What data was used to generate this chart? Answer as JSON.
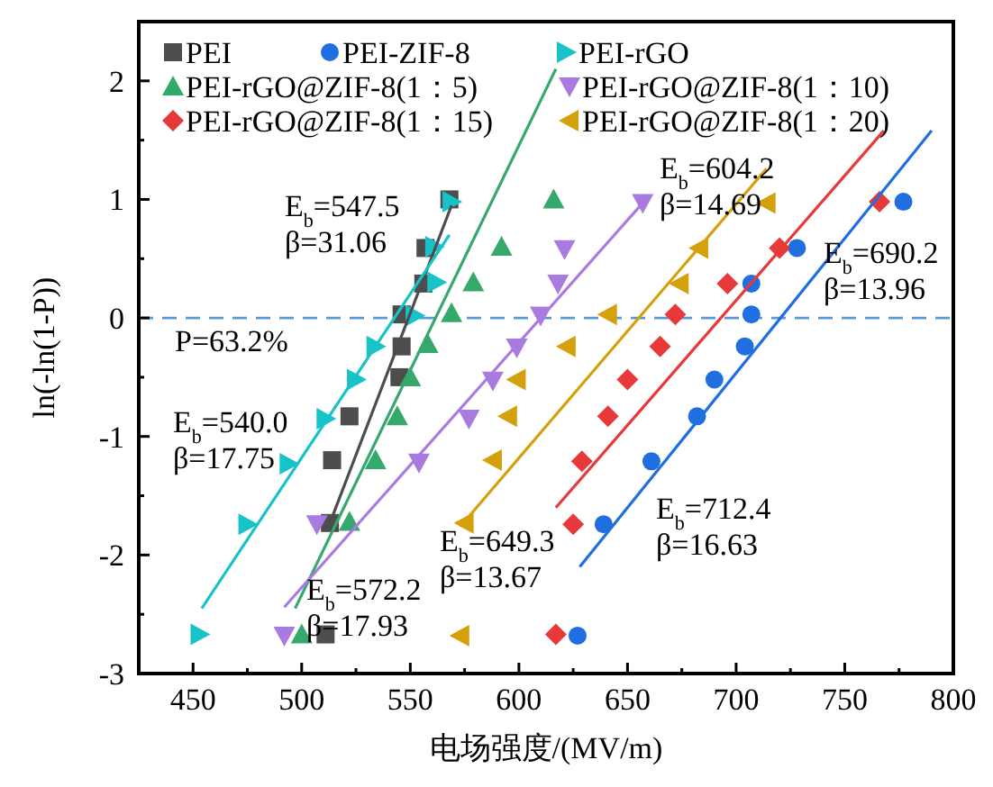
{
  "chart_data": {
    "type": "scatter",
    "xlabel": "电场强度/(MV/m)",
    "ylabel": "ln(-ln(1-P))",
    "xlim": [
      425,
      800
    ],
    "ylim": [
      -3,
      2.5
    ],
    "xticks": [
      450,
      {
        "value": 475,
        "label": null
      },
      500,
      {
        "value": 525,
        "label": null
      },
      550,
      {
        "value": 575,
        "label": null
      },
      600,
      {
        "value": 625,
        "label": null
      },
      650,
      {
        "value": 675,
        "label": null
      },
      700,
      {
        "value": 725,
        "label": null
      },
      750,
      {
        "value": 775,
        "label": null
      },
      800
    ],
    "yticks": [
      -3,
      {
        "value": -2.5,
        "label": null
      },
      -2,
      {
        "value": -1.5,
        "label": null
      },
      -1,
      {
        "value": -0.5,
        "label": null
      },
      0,
      {
        "value": 0.5,
        "label": null
      },
      1,
      {
        "value": 1.5,
        "label": null
      },
      2
    ],
    "grid": false,
    "legend": "top left",
    "series": [
      {
        "name": "PEI",
        "marker": "square",
        "color": "#4d4d4d",
        "x": [
          511,
          513,
          514,
          522,
          545,
          546,
          546,
          556,
          557,
          568
        ],
        "values": [
          -2.67,
          -1.73,
          -1.2,
          -0.83,
          -0.5,
          -0.24,
          0.03,
          0.29,
          0.59,
          1.0
        ]
      },
      {
        "name": "PEI-ZIF-8",
        "marker": "circle",
        "color": "#1f6fe0",
        "x": [
          627,
          639,
          661,
          682,
          690,
          704,
          707,
          707,
          728,
          777
        ],
        "values": [
          -2.68,
          -1.74,
          -1.21,
          -0.83,
          -0.52,
          -0.24,
          0.03,
          0.29,
          0.59,
          0.98
        ]
      },
      {
        "name": "PEI-rGO",
        "marker": "triangle-right",
        "color": "#17c3c8",
        "x": [
          453,
          475,
          494,
          511,
          525,
          534,
          552,
          562,
          561,
          569
        ],
        "values": [
          -2.67,
          -1.74,
          -1.23,
          -0.85,
          -0.52,
          -0.24,
          0.02,
          0.3,
          0.6,
          0.98
        ]
      },
      {
        "name": "PEI-rGO@ZIF-8(1：5)",
        "marker": "triangle",
        "color": "#35a86b",
        "x": [
          500,
          522,
          534,
          544,
          550,
          558,
          569,
          579,
          592,
          616
        ],
        "values": [
          -2.67,
          -1.72,
          -1.2,
          -0.83,
          -0.5,
          -0.22,
          0.04,
          0.3,
          0.6,
          1.0
        ]
      },
      {
        "name": "PEI-rGO@ZIF-8(1：10)",
        "marker": "triangle-down",
        "color": "#a97be0",
        "x": [
          492,
          507,
          554,
          577,
          588,
          599,
          610,
          618,
          621,
          657
        ],
        "values": [
          -2.68,
          -1.74,
          -1.22,
          -0.85,
          -0.53,
          -0.25,
          0.02,
          0.29,
          0.58,
          0.97
        ]
      },
      {
        "name": "PEI-rGO@ZIF-8(1：15)",
        "marker": "diamond",
        "color": "#e8393a",
        "x": [
          617,
          625,
          629,
          641,
          650,
          665,
          672,
          696,
          720,
          766
        ],
        "values": [
          -2.67,
          -1.74,
          -1.21,
          -0.83,
          -0.52,
          -0.24,
          0.03,
          0.29,
          0.59,
          0.98
        ]
      },
      {
        "name": "PEI-rGO@ZIF-8(1：20)",
        "marker": "triangle-left",
        "color": "#d4a00c",
        "x": [
          573,
          575,
          588,
          595,
          599,
          622,
          641,
          674,
          683,
          714
        ],
        "values": [
          -2.68,
          -1.73,
          -1.2,
          -0.83,
          -0.52,
          -0.24,
          0.03,
          0.29,
          0.59,
          0.97
        ]
      },
      {
        "type": "line",
        "color": "#4d4d4d",
        "x": [
          513,
          569
        ],
        "values": [
          -1.73,
          0.95
        ]
      },
      {
        "type": "line",
        "color": "#1f6fe0",
        "x": [
          628,
          790
        ],
        "values": [
          -2.1,
          1.58
        ]
      },
      {
        "type": "line",
        "color": "#17c3c8",
        "x": [
          454,
          568
        ],
        "values": [
          -2.45,
          0.7
        ]
      },
      {
        "type": "line",
        "color": "#35a86b",
        "x": [
          497,
          617
        ],
        "values": [
          -2.45,
          2.1
        ]
      },
      {
        "type": "line",
        "color": "#a97be0",
        "x": [
          492,
          657
        ],
        "values": [
          -2.44,
          0.97
        ]
      },
      {
        "type": "line",
        "color": "#e8393a",
        "x": [
          617,
          768
        ],
        "values": [
          -1.6,
          1.58
        ]
      },
      {
        "type": "line",
        "color": "#d4a00c",
        "x": [
          573,
          714
        ],
        "values": [
          -1.76,
          1.26
        ]
      }
    ],
    "ref_lines": [
      {
        "axis": "y",
        "value": 0,
        "color": "#5b9bd5",
        "line_style": "dashed"
      }
    ],
    "annotations": [
      "E$_{b}$=547.5\nβ=31.06",
      "E$_{b}$=540.0\nβ=17.75",
      "E$_{b}$=572.2\nβ=17.93",
      "E$_{b}$=649.3\nβ=13.67",
      "E$_{b}$=604.2\nβ=14.69",
      "E$_{b}$=690.2\nβ=13.96",
      "E$_{b}$=712.4\nβ=16.63",
      "P=63.2%"
    ]
  }
}
